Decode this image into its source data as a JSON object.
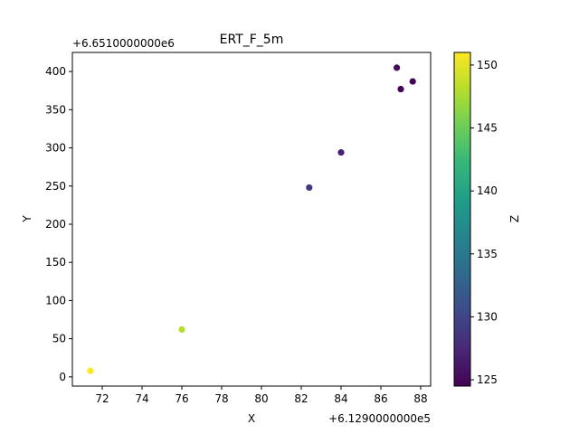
{
  "chart_data": {
    "type": "scatter",
    "title": "ERT_F_5m",
    "xlabel": "X",
    "ylabel": "Y",
    "x_offset_label": "+6.1290000000e5",
    "y_offset_label": "+6.6510000000e6",
    "xlim": [
      70.5,
      88.5
    ],
    "ylim": [
      -12,
      425
    ],
    "x_ticks": [
      72,
      74,
      76,
      78,
      80,
      82,
      84,
      86,
      88
    ],
    "x_tick_labels": [
      "72",
      "74",
      "76",
      "78",
      "80",
      "82",
      "84",
      "86",
      "88"
    ],
    "y_ticks": [
      0,
      50,
      100,
      150,
      200,
      250,
      300,
      350,
      400
    ],
    "y_tick_labels": [
      "0",
      "50",
      "100",
      "150",
      "200",
      "250",
      "300",
      "350",
      "400"
    ],
    "points": [
      {
        "x": 71.4,
        "y": 8,
        "z": 151
      },
      {
        "x": 76.0,
        "y": 62,
        "z": 148
      },
      {
        "x": 82.4,
        "y": 248,
        "z": 129
      },
      {
        "x": 84.0,
        "y": 294,
        "z": 127
      },
      {
        "x": 86.8,
        "y": 405,
        "z": 125
      },
      {
        "x": 87.0,
        "y": 377,
        "z": 124.8
      },
      {
        "x": 87.6,
        "y": 387,
        "z": 124.8
      }
    ],
    "colorbar": {
      "label": "Z",
      "cmap": "viridis",
      "range": [
        124.5,
        151
      ],
      "ticks": [
        125,
        130,
        135,
        140,
        145,
        150
      ],
      "tick_labels": [
        "125",
        "130",
        "135",
        "140",
        "145",
        "150"
      ]
    },
    "grid": false,
    "colors": {
      "viridis": [
        "#440154",
        "#482878",
        "#3e4989",
        "#31688e",
        "#26828e",
        "#1f9e89",
        "#35b779",
        "#6ece58",
        "#b5de2b",
        "#fde725"
      ]
    }
  }
}
